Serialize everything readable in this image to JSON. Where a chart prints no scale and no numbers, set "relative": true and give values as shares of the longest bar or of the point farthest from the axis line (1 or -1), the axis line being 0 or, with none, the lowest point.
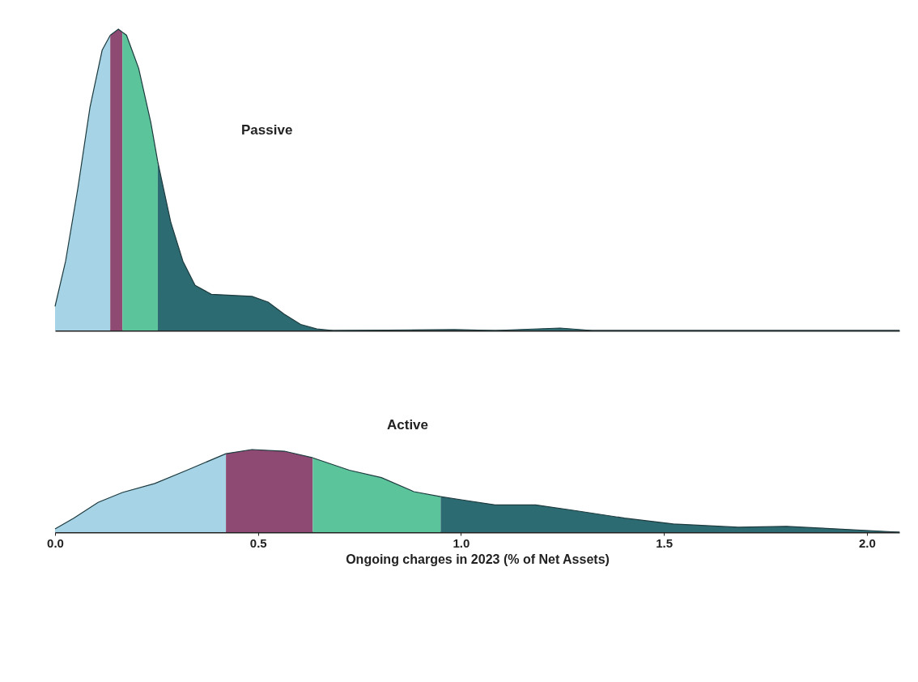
{
  "chart_data": [
    {
      "type": "area",
      "relative": true,
      "xlim": [
        0,
        2.08
      ],
      "tick_labels": false,
      "annotations": [
        "Passive"
      ],
      "series": [
        {
          "color": "#a6d3e6",
          "x": [
            0,
            0.026,
            0.056,
            0.086,
            0.116,
            0.136
          ],
          "values": [
            0.08,
            0.23,
            0.47,
            0.74,
            0.93,
            0.98
          ]
        },
        {
          "color": "#8e4a72",
          "x": [
            0.136,
            0.156,
            0.166
          ],
          "values": [
            0.98,
            1,
            0.99
          ]
        },
        {
          "color": "#5cc49a",
          "x": [
            0.166,
            0.176,
            0.206,
            0.236,
            0.253
          ],
          "values": [
            0.99,
            0.98,
            0.87,
            0.69,
            0.56
          ]
        },
        {
          "color": "#2d6b72",
          "x": [
            0.253,
            0.285,
            0.315,
            0.345,
            0.385,
            0.445,
            0.485,
            0.525,
            0.565,
            0.605,
            0.645,
            0.685,
            0.984,
            1.084,
            1.244,
            1.323,
            2.08
          ],
          "values": [
            0.56,
            0.36,
            0.23,
            0.15,
            0.12,
            0.116,
            0.113,
            0.094,
            0.054,
            0.02,
            0.005,
            0,
            0.003,
            0,
            0.008,
            0,
            0
          ]
        }
      ]
    },
    {
      "type": "area",
      "relative": true,
      "xlim": [
        0,
        2.08
      ],
      "tick_labels": "x",
      "xlabel": "Ongoing charges in 2023 (% of Net Assets)",
      "annotations": [
        "Active"
      ],
      "xticks": [
        {
          "value": 0,
          "label": "0.0"
        },
        0.5,
        {
          "value": 1,
          "label": "1.0"
        },
        1.5,
        {
          "value": 2,
          "label": "2.0"
        }
      ],
      "series": [
        {
          "color": "#a6d3e6",
          "x": [
            0,
            0.046,
            0.106,
            0.166,
            0.246,
            0.325,
            0.421
          ],
          "values": [
            0.04,
            0.17,
            0.36,
            0.48,
            0.59,
            0.75,
            0.95
          ]
        },
        {
          "color": "#8e4a72",
          "x": [
            0.421,
            0.485,
            0.565,
            0.635
          ],
          "values": [
            0.95,
            1,
            0.98,
            0.9
          ]
        },
        {
          "color": "#5cc49a",
          "x": [
            0.635,
            0.725,
            0.804,
            0.884,
            0.95
          ],
          "values": [
            0.9,
            0.75,
            0.66,
            0.49,
            0.43
          ]
        },
        {
          "color": "#2d6b72",
          "x": [
            0.95,
            1.004,
            1.084,
            1.184,
            1.283,
            1.403,
            1.523,
            1.683,
            1.802,
            1.882,
            2.08
          ],
          "values": [
            0.43,
            0.39,
            0.33,
            0.33,
            0.26,
            0.17,
            0.1,
            0.06,
            0.07,
            0.05,
            0
          ]
        }
      ]
    }
  ]
}
